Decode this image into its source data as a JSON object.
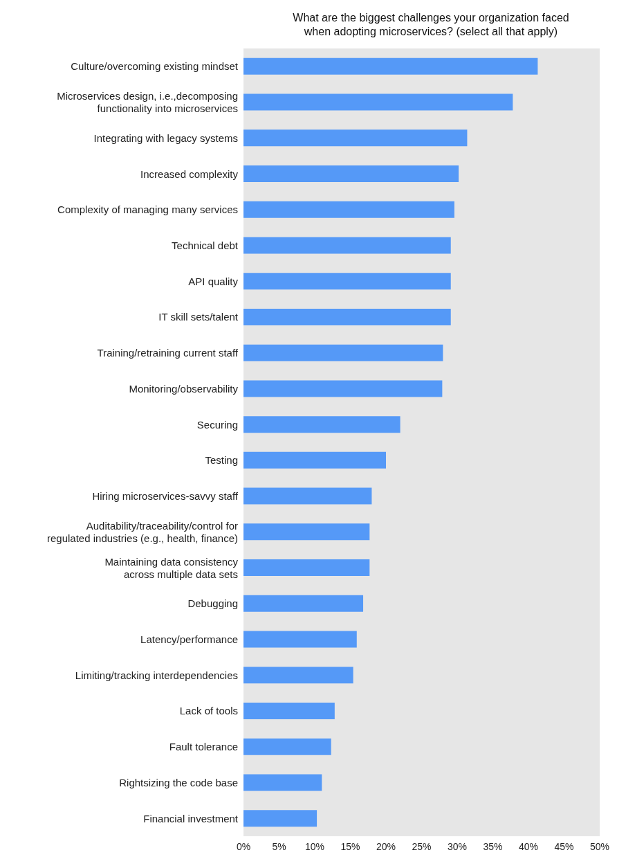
{
  "chart_data": {
    "type": "bar",
    "orientation": "horizontal",
    "title": "What are the biggest challenges your organization faced\nwhen adopting microservices? (select all that apply)",
    "categories": [
      "Culture/overcoming existing mindset",
      "Microservices design, i.e.,decomposing\nfunctionality into microservices",
      "Integrating with legacy systems",
      "Increased complexity",
      "Complexity of managing many services",
      "Technical debt",
      "API quality",
      "IT skill sets/talent",
      "Training/retraining current staff",
      "Monitoring/observability",
      "Securing",
      "Testing",
      "Hiring microservices-savvy staff",
      "Auditability/traceability/control for\nregulated industries (e.g., health, finance)",
      "Maintaining data consistency\nacross multiple data sets",
      "Debugging",
      "Latency/performance",
      "Limiting/tracking interdependencies",
      "Lack of tools",
      "Fault tolerance",
      "Rightsizing the code base",
      "Financial investment"
    ],
    "values": [
      41.3,
      37.8,
      31.4,
      30.2,
      29.6,
      29.1,
      29.1,
      29.1,
      28.0,
      27.9,
      22.0,
      20.0,
      18.0,
      17.7,
      17.7,
      16.8,
      15.9,
      15.4,
      12.8,
      12.3,
      11.0,
      10.3
    ],
    "color": "#5599f7",
    "xlim": [
      0,
      50
    ],
    "xticks": [
      {
        "value": 0,
        "label": "0%"
      },
      {
        "value": 5,
        "label": "5%"
      },
      {
        "value": 10,
        "label": "10%"
      },
      {
        "value": 15,
        "label": "15%"
      },
      {
        "value": 20,
        "label": "20%"
      },
      {
        "value": 25,
        "label": "25%"
      },
      {
        "value": 30,
        "label": "30%"
      },
      {
        "value": 35,
        "label": "35%"
      },
      {
        "value": 40,
        "label": "40%"
      },
      {
        "value": 45,
        "label": "45%"
      },
      {
        "value": 50,
        "label": "50%"
      }
    ],
    "grid": false
  }
}
